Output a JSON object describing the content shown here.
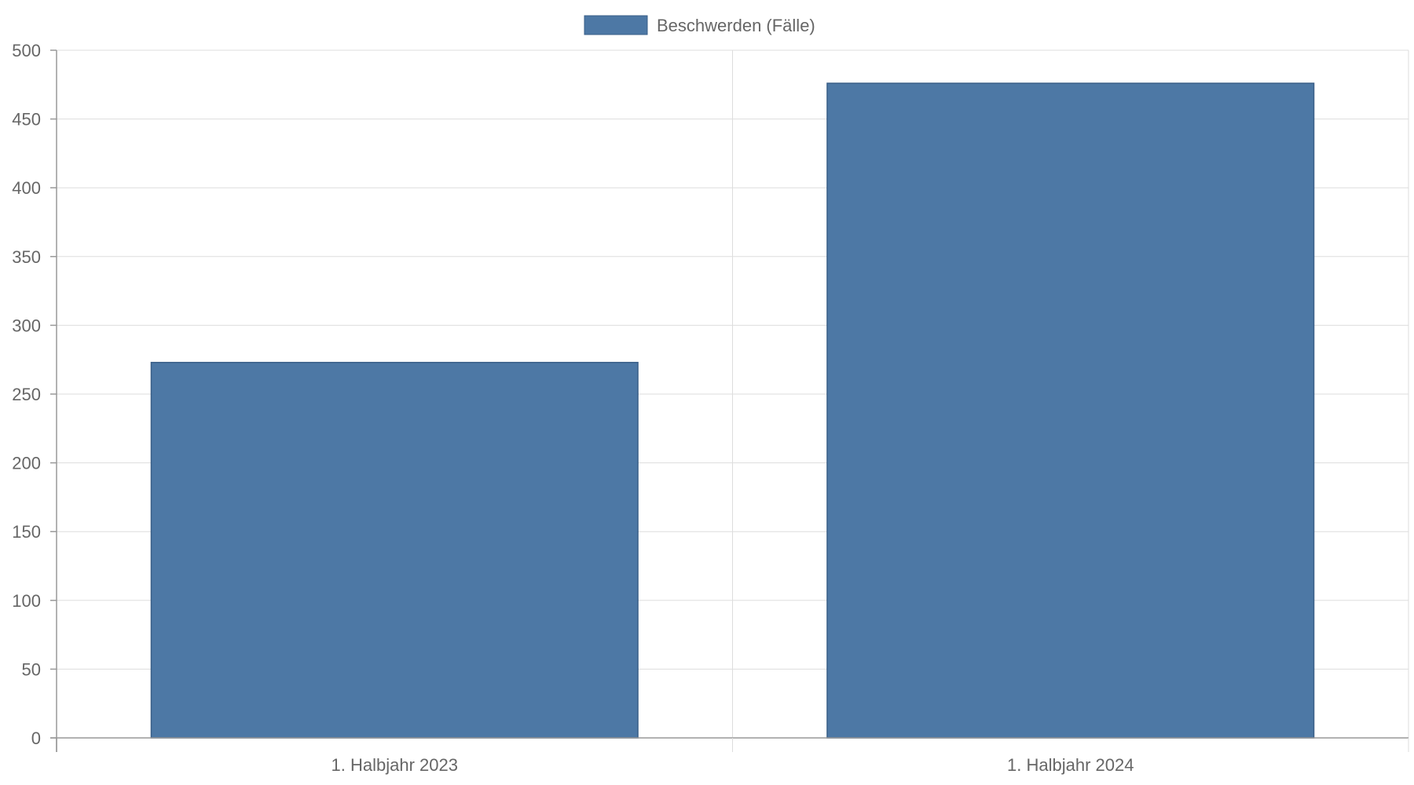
{
  "chart_data": {
    "type": "bar",
    "categories": [
      "1. Halbjahr 2023",
      "1. Halbjahr 2024"
    ],
    "series": [
      {
        "name": "Beschwerden (Fälle)",
        "values": [
          273,
          476
        ],
        "color": "#4d78a5",
        "border_color": "#3a5f88"
      }
    ],
    "ylim": [
      0,
      500
    ],
    "y_ticks": [
      0,
      50,
      100,
      150,
      200,
      250,
      300,
      350,
      400,
      450,
      500
    ],
    "grid": true,
    "legend_position": "top-center"
  }
}
